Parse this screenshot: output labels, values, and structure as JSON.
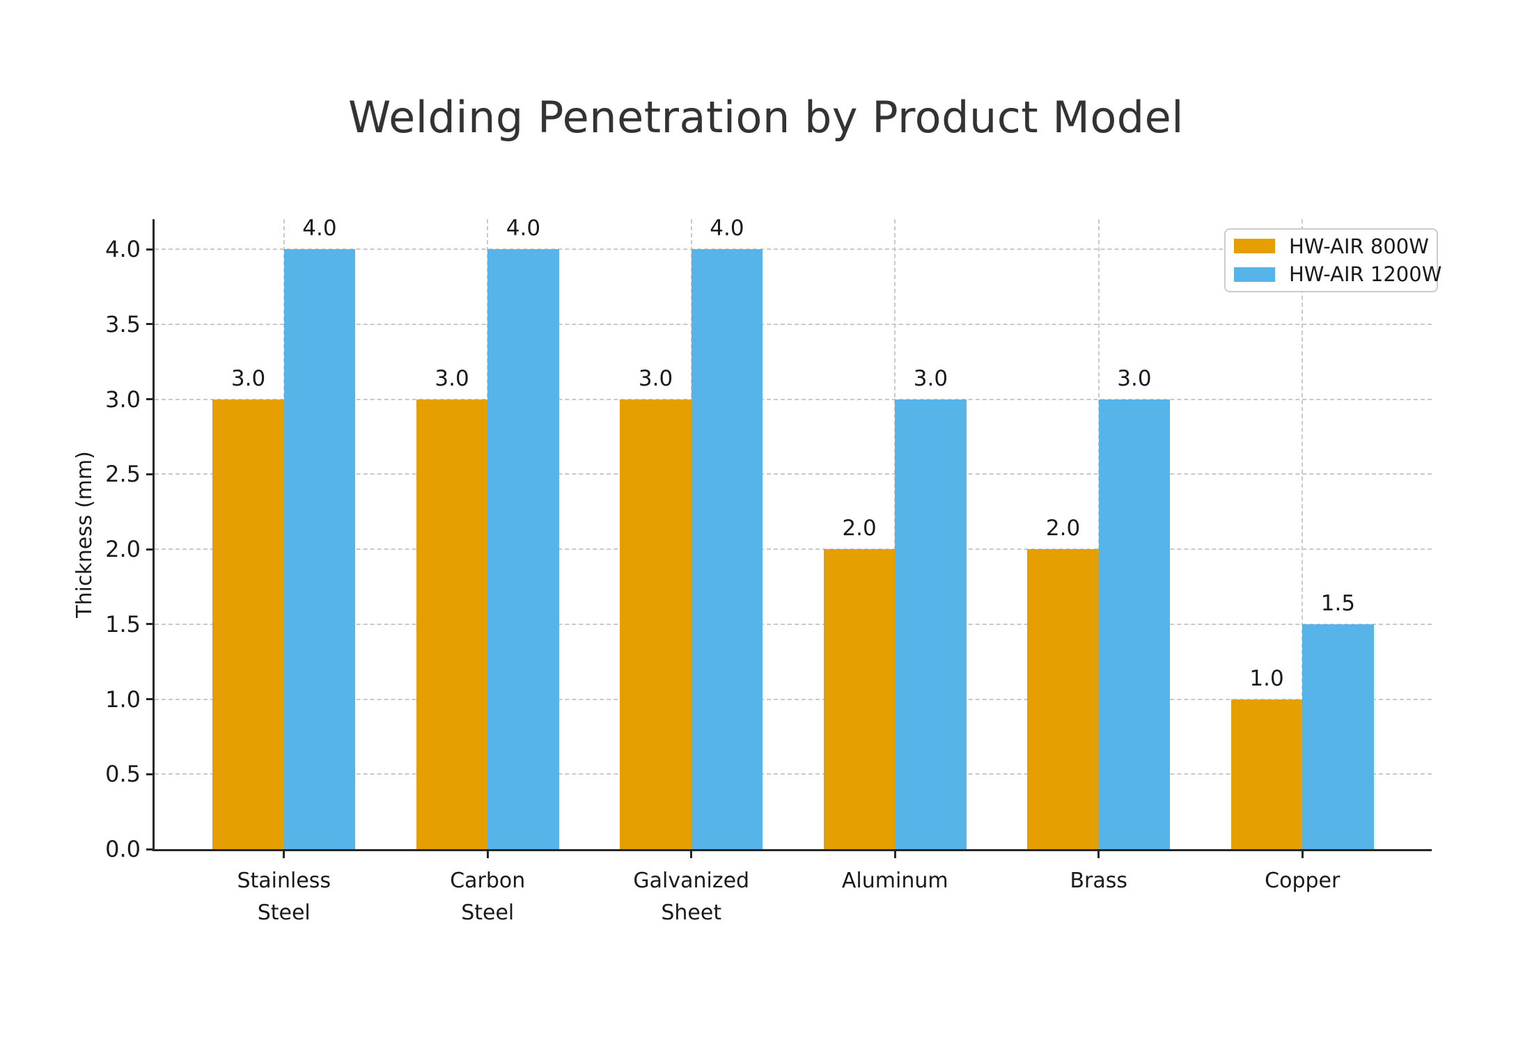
{
  "title": "Welding Penetration by Product Model",
  "chart_data": {
    "type": "bar",
    "title": "Welding Penetration by Product Model",
    "categories": [
      "Stainless Steel",
      "Carbon Steel",
      "Galvanized Sheet",
      "Aluminum",
      "Brass",
      "Copper"
    ],
    "categories_display": [
      "Stainless\nSteel",
      "Carbon\nSteel",
      "Galvanized\nSheet",
      "Aluminum",
      "Brass",
      "Copper"
    ],
    "series": [
      {
        "name": "HW-AIR 800W",
        "color": "#E69F00",
        "values": [
          3.0,
          3.0,
          3.0,
          2.0,
          2.0,
          1.0
        ]
      },
      {
        "name": "HW-AIR 1200W",
        "color": "#56B4E9",
        "values": [
          4.0,
          4.0,
          4.0,
          3.0,
          3.0,
          1.5
        ]
      }
    ],
    "xlabel": "",
    "ylabel": "Thickness (mm)",
    "ylim": [
      0,
      4.2
    ],
    "yticks": [
      0,
      0.5,
      1,
      1.5,
      2,
      2.5,
      3,
      3.5,
      4
    ],
    "ytick_labels": [
      "0.0",
      "0.5",
      "1.0",
      "1.5",
      "2.0",
      "2.5",
      "3.0",
      "3.5",
      "4.0"
    ],
    "bar_value_labels": true,
    "value_label_decimals": 1,
    "grid": "dashed",
    "legend_position": "upper right",
    "colors": {
      "text": "#1a1a1a",
      "title": "#333333",
      "spine": "#262626",
      "gridline": "#c9c9c9",
      "background": "#ffffff"
    }
  }
}
